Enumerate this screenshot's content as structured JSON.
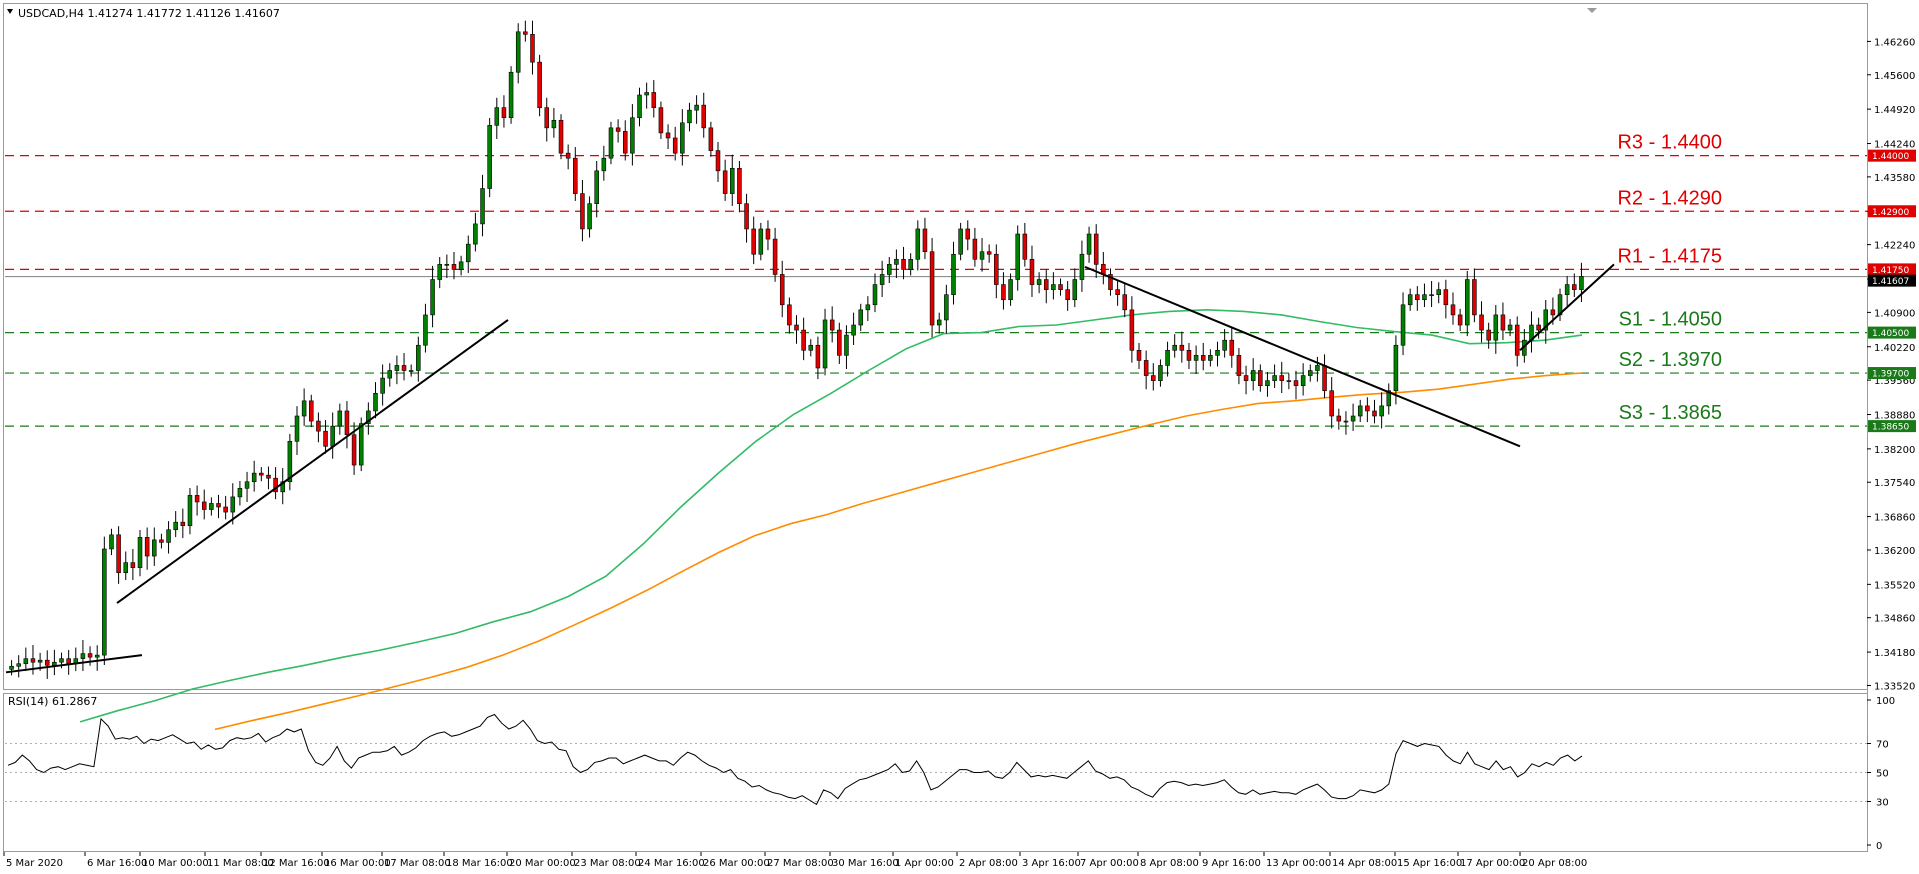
{
  "chart_data": [
    {
      "type": "candlestick",
      "title": "USDCAD,H4  1.41274 1.41772 1.41126 1.41607",
      "symbol": "USDCAD",
      "timeframe": "H4",
      "ohlc_header": [
        "1.41274",
        "1.41772",
        "1.41126",
        "1.41607"
      ],
      "ylim": [
        1.3345,
        1.47
      ],
      "y_ticks": [
        "1.46260",
        "1.45600",
        "1.44920",
        "1.44240",
        "1.43580",
        "1.42900",
        "1.42240",
        "1.41560",
        "1.40900",
        "1.40220",
        "1.39560",
        "1.38880",
        "1.38200",
        "1.37540",
        "1.36860",
        "1.36200",
        "1.35520",
        "1.34860",
        "1.34180",
        "1.33520"
      ],
      "x_ticks": [
        "5 Mar 2020",
        "6 Mar 16:00",
        "10 Mar 00:00",
        "11 Mar 08:00",
        "12 Mar 16:00",
        "16 Mar 00:00",
        "17 Mar 08:00",
        "18 Mar 16:00",
        "20 Mar 00:00",
        "23 Mar 08:00",
        "24 Mar 16:00",
        "26 Mar 00:00",
        "27 Mar 08:00",
        "30 Mar 16:00",
        "1 Apr 00:00",
        "2 Apr 08:00",
        "3 Apr 16:00",
        "7 Apr 00:00",
        "8 Apr 08:00",
        "9 Apr 16:00",
        "13 Apr 00:00",
        "14 Apr 08:00",
        "15 Apr 16:00",
        "17 Apr 00:00",
        "20 Apr 08:00"
      ],
      "colors": {
        "up": "#008000",
        "down": "#e00000",
        "ma_fast": "#33bb66",
        "ma_slow": "#ff8c00",
        "resistance": "#e00000",
        "support": "#1a7a1a",
        "trendline": "#000000",
        "current_price_tag": "#000000"
      },
      "levels": [
        {
          "label": "R3 - 1.4400",
          "value": 1.44,
          "tag": "1.44000",
          "kind": "resistance"
        },
        {
          "label": "R2 - 1.4290",
          "value": 1.429,
          "tag": "1.42900",
          "kind": "resistance"
        },
        {
          "label": "R1 - 1.4175",
          "value": 1.4175,
          "tag": "1.41750",
          "kind": "resistance"
        },
        {
          "label": "S1 - 1.4050",
          "value": 1.405,
          "tag": "1.40500",
          "kind": "support"
        },
        {
          "label": "S2 - 1.3970",
          "value": 1.397,
          "tag": "1.39700",
          "kind": "support"
        },
        {
          "label": "S3 - 1.3865",
          "value": 1.3865,
          "tag": "1.38650",
          "kind": "support"
        }
      ],
      "current_price": {
        "value": 1.41607,
        "tag": "1.41607"
      },
      "closes": [
        1.339,
        1.3395,
        1.3405,
        1.3398,
        1.3402,
        1.3392,
        1.3398,
        1.3405,
        1.3395,
        1.3405,
        1.3415,
        1.3408,
        1.3412,
        1.3622,
        1.365,
        1.3575,
        1.3595,
        1.3585,
        1.3645,
        1.3608,
        1.364,
        1.3635,
        1.366,
        1.3675,
        1.3668,
        1.3728,
        1.3715,
        1.37,
        1.3712,
        1.3705,
        1.3695,
        1.3725,
        1.3742,
        1.3755,
        1.3772,
        1.3768,
        1.3762,
        1.3735,
        1.3755,
        1.3835,
        1.3885,
        1.3915,
        1.3875,
        1.3855,
        1.3825,
        1.3865,
        1.3895,
        1.3848,
        1.3788,
        1.387,
        1.3895,
        1.393,
        1.396,
        1.3975,
        1.3985,
        1.3975,
        1.3975,
        1.4025,
        1.4085,
        1.4155,
        1.4185,
        1.4185,
        1.4175,
        1.419,
        1.4225,
        1.4265,
        1.4335,
        1.446,
        1.4495,
        1.4475,
        1.4565,
        1.4645,
        1.464,
        1.4585,
        1.4495,
        1.4455,
        1.447,
        1.4405,
        1.4395,
        1.4325,
        1.4255,
        1.4305,
        1.437,
        1.4395,
        1.4455,
        1.4448,
        1.4405,
        1.4475,
        1.452,
        1.4525,
        1.4495,
        1.4445,
        1.4435,
        1.4405,
        1.4465,
        1.449,
        1.45,
        1.4455,
        1.441,
        1.437,
        1.4325,
        1.4375,
        1.4305,
        1.4255,
        1.4205,
        1.4255,
        1.4235,
        1.4165,
        1.4105,
        1.4065,
        1.4055,
        1.4015,
        1.4025,
        1.398,
        1.4075,
        1.4055,
        1.4005,
        1.4045,
        1.4065,
        1.4095,
        1.4105,
        1.4145,
        1.4165,
        1.4185,
        1.4195,
        1.4175,
        1.4195,
        1.4255,
        1.421,
        1.4065,
        1.4075,
        1.4125,
        1.4205,
        1.4255,
        1.4235,
        1.4195,
        1.421,
        1.4205,
        1.4145,
        1.4115,
        1.4155,
        1.4245,
        1.4195,
        1.4145,
        1.4155,
        1.4135,
        1.4145,
        1.4135,
        1.4115,
        1.4155,
        1.4205,
        1.4245,
        1.4185,
        1.4165,
        1.4135,
        1.4125,
        1.4095,
        1.4015,
        1.3995,
        1.3965,
        1.3955,
        1.3985,
        1.4015,
        1.4025,
        1.4015,
        1.3995,
        1.4005,
        1.3995,
        1.4005,
        1.4015,
        1.4035,
        1.4005,
        1.3965,
        1.3955,
        1.3975,
        1.3945,
        1.3955,
        1.3965,
        1.3955,
        1.3955,
        1.3945,
        1.3965,
        1.3975,
        1.3985,
        1.3935,
        1.3885,
        1.3875,
        1.3875,
        1.3885,
        1.3905,
        1.3895,
        1.3885,
        1.3905,
        1.3935,
        1.4025,
        1.4105,
        1.4125,
        1.4115,
        1.4125,
        1.4125,
        1.4135,
        1.4105,
        1.4085,
        1.4065,
        1.4155,
        1.4085,
        1.4055,
        1.4035,
        1.4085,
        1.4055,
        1.4065,
        1.4005,
        1.4035,
        1.4065,
        1.4055,
        1.4095,
        1.4085,
        1.4125,
        1.4145,
        1.4135,
        1.4161
      ],
      "ma_fast_values": [
        1.328,
        1.3302,
        1.3322,
        1.3345,
        1.3362,
        1.3378,
        1.3392,
        1.3408,
        1.3422,
        1.3438,
        1.3455,
        1.3478,
        1.3498,
        1.3528,
        1.3568,
        1.3632,
        1.3705,
        1.3772,
        1.3835,
        1.3888,
        1.393,
        1.3975,
        1.4018,
        1.4048,
        1.405,
        1.4062,
        1.4065,
        1.4075,
        1.4085,
        1.4092,
        1.4095,
        1.4092,
        1.4085,
        1.4072,
        1.406,
        1.4052,
        1.4045,
        1.4028,
        1.403,
        1.4035,
        1.4045
      ],
      "ma_slow_values": [
        1.3265,
        1.3282,
        1.3298,
        1.3315,
        1.3332,
        1.335,
        1.3368,
        1.3388,
        1.3412,
        1.344,
        1.3472,
        1.3505,
        1.354,
        1.3578,
        1.3615,
        1.3648,
        1.3672,
        1.369,
        1.3712,
        1.3732,
        1.3752,
        1.3772,
        1.3792,
        1.3812,
        1.3832,
        1.385,
        1.3868,
        1.3885,
        1.3898,
        1.391,
        1.3915,
        1.3922,
        1.3928,
        1.3932,
        1.3938,
        1.3948,
        1.3958,
        1.3965,
        1.397
      ],
      "trendlines": [
        {
          "from": [
            1.3378,
            null
          ],
          "to": [
            1.3412,
            null
          ]
        },
        {
          "from": [
            1.3515,
            null
          ],
          "to": [
            1.4075,
            null
          ]
        },
        {
          "from": [
            1.418,
            null
          ],
          "to": [
            1.3825,
            null
          ]
        },
        {
          "from": [
            1.4015,
            null
          ],
          "to": [
            1.4185,
            null
          ]
        }
      ]
    },
    {
      "type": "line",
      "title": "RSI(14) 61.2867",
      "ylim": [
        0,
        100
      ],
      "y_ticks": [
        "100",
        "70",
        "50",
        "30",
        "0"
      ],
      "reference_lines": [
        70,
        50,
        30
      ],
      "values": [
        55,
        57,
        62,
        58,
        52,
        50,
        53,
        54,
        52,
        54,
        56,
        55,
        54,
        87,
        82,
        73,
        74,
        73,
        75,
        70,
        73,
        72,
        74,
        76,
        73,
        70,
        71,
        66,
        69,
        66,
        67,
        72,
        74,
        73,
        74,
        77,
        71,
        74,
        76,
        80,
        78,
        80,
        65,
        57,
        55,
        60,
        68,
        58,
        53,
        60,
        62,
        64,
        64,
        65,
        68,
        62,
        64,
        67,
        72,
        75,
        77,
        78,
        75,
        76,
        78,
        80,
        82,
        88,
        90,
        84,
        80,
        82,
        86,
        80,
        72,
        70,
        71,
        66,
        65,
        54,
        50,
        52,
        57,
        58,
        60,
        60,
        56,
        58,
        60,
        62,
        60,
        58,
        58,
        55,
        60,
        64,
        62,
        58,
        55,
        53,
        50,
        52,
        46,
        44,
        40,
        41,
        38,
        36,
        35,
        33,
        32,
        34,
        31,
        28,
        38,
        36,
        32,
        39,
        42,
        45,
        46,
        48,
        50,
        52,
        56,
        50,
        51,
        58,
        50,
        38,
        40,
        44,
        48,
        52,
        52,
        50,
        50,
        51,
        47,
        46,
        50,
        57,
        52,
        47,
        48,
        47,
        48,
        47,
        46,
        50,
        54,
        58,
        51,
        49,
        46,
        47,
        45,
        40,
        38,
        35,
        33,
        39,
        43,
        44,
        43,
        41,
        42,
        41,
        42,
        43,
        45,
        40,
        36,
        35,
        38,
        35,
        36,
        37,
        36,
        36,
        35,
        38,
        40,
        42,
        38,
        33,
        32,
        32,
        34,
        38,
        37,
        36,
        38,
        42,
        63,
        72,
        70,
        68,
        70,
        69,
        68,
        62,
        58,
        56,
        64,
        56,
        54,
        52,
        58,
        52,
        54,
        47,
        50,
        56,
        54,
        57,
        55,
        60,
        62,
        58,
        61.2867
      ]
    }
  ]
}
